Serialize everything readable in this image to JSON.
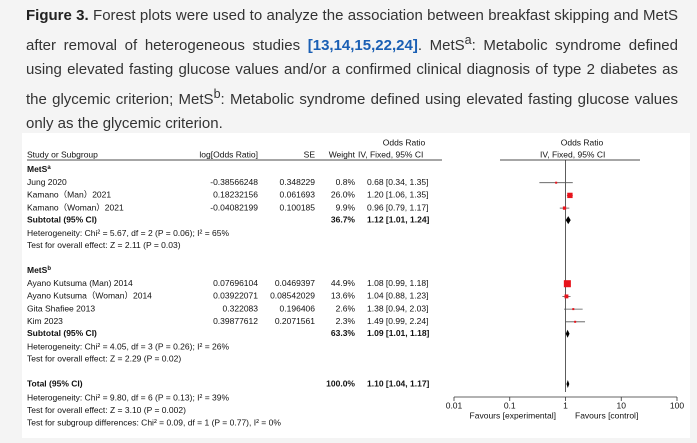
{
  "caption": {
    "label": "Figure 3.",
    "text_1": " Forest plots were used to analyze the association between breakfast skipping and MetS after removal of heterogeneous studies ",
    "refs": "[13,14,15,22,24]",
    "text_2": ". MetS",
    "sup_a": "a",
    "text_3": ": Metabolic syndrome defined using elevated fasting glucose values and/or a confirmed clinical diagnosis of type 2 diabetes as the glycemic criterion; MetS",
    "sup_b": "b",
    "text_4": ": Metabolic syndrome defined using elevated fasting glucose values only as the glycemic criterion."
  },
  "figure": {
    "headers": {
      "or_left": "Odds Ratio",
      "or_right": "Odds Ratio",
      "study": "Study or Subgroup",
      "log_or": "log[Odds Ratio]",
      "se": "SE",
      "weight": "Weight",
      "ci_left": "IV, Fixed, 95% CI",
      "ci_right": "IV, Fixed, 95% CI"
    },
    "groups": [
      {
        "title": "MetS",
        "sup": "a",
        "studies": [
          {
            "name": "Jung 2020",
            "log_or": -0.38566248,
            "se": 0.348229,
            "weight": 0.8,
            "weight_label": "0.8%",
            "or": 0.68,
            "ci": [
              0.34,
              1.35
            ],
            "or_label": "0.68 [0.34, 1.35]"
          },
          {
            "name": "Kamano（Man）2021",
            "log_or": 0.18232156,
            "se": 0.061693,
            "weight": 26.0,
            "weight_label": "26.0%",
            "or": 1.2,
            "ci": [
              1.06,
              1.35
            ],
            "or_label": "1.20 [1.06, 1.35]"
          },
          {
            "name": "Kamano（Woman）2021",
            "log_or": -0.04082199,
            "se": 0.100185,
            "weight": 9.9,
            "weight_label": "9.9%",
            "or": 0.96,
            "ci": [
              0.79,
              1.17
            ],
            "or_label": "0.96 [0.79, 1.17]"
          }
        ],
        "subtotal": {
          "label": "Subtotal (95% CI)",
          "weight_label": "36.7%",
          "or": 1.12,
          "ci": [
            1.01,
            1.24
          ],
          "or_label": "1.12 [1.01, 1.24]"
        },
        "heterogeneity": "Heterogeneity: Chi² = 5.67, df = 2 (P = 0.06); I² = 65%",
        "overall": "Test for overall effect: Z = 2.11 (P = 0.03)"
      },
      {
        "title": "MetS",
        "sup": "b",
        "studies": [
          {
            "name": "Ayano Kutsuma (Man) 2014",
            "log_or": 0.07696104,
            "se": 0.0469397,
            "weight": 44.9,
            "weight_label": "44.9%",
            "or": 1.08,
            "ci": [
              0.99,
              1.18
            ],
            "or_label": "1.08 [0.99, 1.18]"
          },
          {
            "name": "Ayano Kutsuma（Woman）2014",
            "log_or": 0.03922071,
            "se": 0.08542029,
            "weight": 13.6,
            "weight_label": "13.6%",
            "or": 1.04,
            "ci": [
              0.88,
              1.23
            ],
            "or_label": "1.04 [0.88, 1.23]"
          },
          {
            "name": "Gita Shafiee 2013",
            "log_or": 0.322083,
            "se": 0.196406,
            "weight": 2.6,
            "weight_label": "2.6%",
            "or": 1.38,
            "ci": [
              0.94,
              2.03
            ],
            "or_label": "1.38 [0.94, 2.03]"
          },
          {
            "name": "Kim 2023",
            "log_or": 0.39877612,
            "se": 0.2071561,
            "weight": 2.3,
            "weight_label": "2.3%",
            "or": 1.49,
            "ci": [
              0.99,
              2.24
            ],
            "or_label": "1.49 [0.99, 2.24]"
          }
        ],
        "subtotal": {
          "label": "Subtotal (95% CI)",
          "weight_label": "63.3%",
          "or": 1.09,
          "ci": [
            1.01,
            1.18
          ],
          "or_label": "1.09 [1.01, 1.18]"
        },
        "heterogeneity": "Heterogeneity: Chi² = 4.05, df = 3 (P = 0.26); I² = 26%",
        "overall": "Test for overall effect: Z = 2.29 (P = 0.02)"
      }
    ],
    "total": {
      "label": "Total (95% CI)",
      "weight_label": "100.0%",
      "or": 1.1,
      "ci": [
        1.04,
        1.17
      ],
      "or_label": "1.10 [1.04, 1.17]",
      "lines": [
        "Heterogeneity: Chi² = 9.80, df = 6 (P = 0.13); I² = 39%",
        "Test for overall effect: Z = 3.10 (P = 0.002)",
        "Test for subgroup differences: Chi² = 0.09, df = 1 (P = 0.77), I² = 0%"
      ]
    },
    "axis": {
      "log_scale": true,
      "xlim": [
        0.01,
        100
      ],
      "xticks": [
        0.01,
        0.1,
        1,
        10,
        100
      ],
      "favours_left": "Favours [experimental]",
      "favours_right": "Favours [control]"
    },
    "square_color": "#e8141c"
  }
}
